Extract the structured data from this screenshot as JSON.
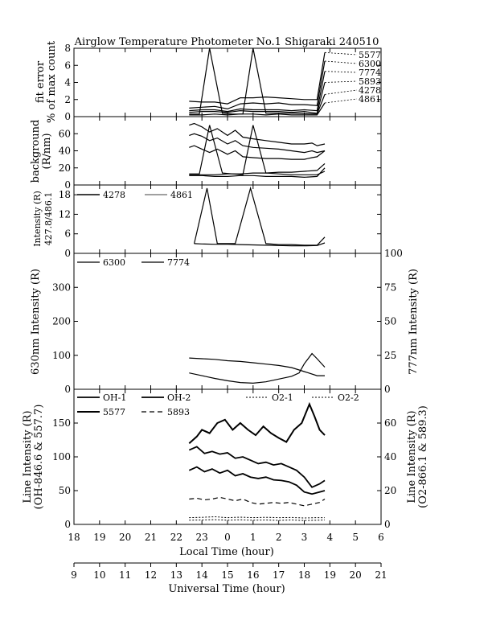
{
  "title": "Airglow Temperature Photometer No.1  Shigaraki  240510",
  "x_axes": {
    "local": {
      "label": "Local Time (hour)",
      "ticks": [
        "18",
        "19",
        "20",
        "21",
        "22",
        "23",
        "0",
        "1",
        "2",
        "3",
        "4",
        "5",
        "6"
      ]
    },
    "ut": {
      "label": "Universal Time (hour)",
      "ticks": [
        "9",
        "10",
        "11",
        "12",
        "13",
        "14",
        "15",
        "16",
        "17",
        "18",
        "19",
        "20",
        "21"
      ]
    }
  },
  "panels": [
    {
      "id": "fit",
      "ylabel_lines": [
        "fit error",
        "% of max count"
      ],
      "ylim": [
        0,
        8
      ],
      "yticks": [
        0,
        2,
        4,
        6,
        8
      ],
      "side_labels": [
        "5577",
        "6300",
        "7774",
        "5893",
        "4278",
        "4861"
      ]
    },
    {
      "id": "background",
      "ylabel_lines": [
        "background",
        "(R/nm)"
      ],
      "ylim": [
        0,
        80
      ],
      "yticks": [
        0,
        20,
        40,
        60
      ]
    },
    {
      "id": "blue",
      "ylabel_lines": [
        "Intensity (R)",
        "427.8/486.1"
      ],
      "ylim": [
        0,
        21
      ],
      "yticks": [
        0,
        6,
        12,
        18
      ],
      "legend": [
        "4278",
        "4861"
      ]
    },
    {
      "id": "red",
      "ylabel_left": "630nm Intensity (R)",
      "ylabel_right": "777nm Intensity (R)",
      "ylim": [
        0,
        400
      ],
      "yticks": [
        0,
        100,
        200,
        300
      ],
      "ylim_right": [
        0,
        100
      ],
      "yticks_right": [
        0,
        25,
        50,
        75,
        100
      ],
      "legend": [
        "6300",
        "7774"
      ]
    },
    {
      "id": "lines",
      "ylabel_left_lines": [
        "Line Intensity (R)",
        "(OH-846.6 & 557.7)"
      ],
      "ylabel_right_lines": [
        "Line Intensity (R)",
        "(O2-866.1 & 589.3)"
      ],
      "ylim": [
        0,
        200
      ],
      "yticks": [
        0,
        50,
        100,
        150
      ],
      "ylim_right": [
        0,
        80
      ],
      "yticks_right": [
        0,
        20,
        40,
        60
      ],
      "legend": [
        "OH-1",
        "OH-2",
        "O2-1",
        "O2-2",
        "5577",
        "5893"
      ]
    }
  ],
  "chart_data": [
    {
      "type": "line",
      "panel": "fit",
      "ylabel": "fit error % of max count",
      "x_unit": "local hour (24+ after midnight)",
      "ylim": [
        0,
        8
      ],
      "series": [
        {
          "name": "5577",
          "x": [
            22.5,
            23,
            23.5,
            24,
            24.5,
            25,
            25.5,
            26,
            26.5,
            27,
            27.5,
            27.8
          ],
          "y": [
            1.8,
            1.7,
            1.7,
            1.5,
            2.2,
            2.2,
            2.3,
            2.2,
            2.1,
            2.0,
            2.0,
            7.5
          ]
        },
        {
          "name": "6300",
          "x": [
            22.5,
            23,
            23.5,
            24,
            24.5,
            25,
            25.5,
            26,
            26.5,
            27,
            27.5,
            27.8
          ],
          "y": [
            1.0,
            1.1,
            1.2,
            0.9,
            1.5,
            1.6,
            1.5,
            1.6,
            1.4,
            1.4,
            1.3,
            6.5
          ]
        },
        {
          "name": "7774",
          "x": [
            22.5,
            23,
            23.5,
            24,
            24.5,
            25,
            25.5,
            26,
            26.5,
            27,
            27.5,
            27.8
          ],
          "y": [
            0.7,
            0.8,
            0.8,
            0.6,
            0.9,
            0.8,
            0.8,
            0.8,
            0.7,
            0.8,
            0.7,
            5.3
          ]
        },
        {
          "name": "5893",
          "x": [
            22.5,
            23,
            23.5,
            24,
            24.5,
            25,
            25.5,
            26,
            26.5,
            27,
            27.5,
            27.8
          ],
          "y": [
            0.5,
            0.6,
            0.6,
            0.5,
            0.7,
            0.6,
            0.6,
            0.6,
            0.5,
            0.6,
            0.4,
            4.0
          ]
        },
        {
          "name": "4278",
          "x": [
            22.5,
            22.9,
            23.3,
            23.8,
            24.2,
            24.6,
            25.0,
            25.5,
            26.5,
            27.5,
            27.8
          ],
          "y": [
            0.3,
            0.3,
            8.0,
            0.4,
            0.3,
            0.3,
            8.0,
            0.4,
            0.4,
            0.3,
            2.6
          ]
        },
        {
          "name": "4861",
          "x": [
            22.5,
            23,
            23.5,
            24,
            24.5,
            25,
            25.5,
            26,
            26.5,
            27,
            27.5,
            27.8
          ],
          "y": [
            0.2,
            0.2,
            0.3,
            0.2,
            0.3,
            0.3,
            0.2,
            0.3,
            0.2,
            0.2,
            0.2,
            1.6
          ]
        }
      ]
    },
    {
      "type": "line",
      "panel": "background",
      "ylabel": "background (R/nm)",
      "ylim": [
        0,
        80
      ],
      "series": [
        {
          "x": [
            22.5,
            22.7,
            23.0,
            23.3,
            23.6,
            24.0,
            24.3,
            24.6,
            25.0,
            25.5,
            26.0,
            26.5,
            27.0,
            27.3,
            27.5,
            27.8
          ],
          "y": [
            70,
            72,
            68,
            62,
            66,
            58,
            64,
            56,
            54,
            52,
            50,
            48,
            48,
            49,
            46,
            48
          ]
        },
        {
          "x": [
            22.5,
            22.7,
            23.0,
            23.3,
            23.6,
            24.0,
            24.3,
            24.6,
            25.0,
            25.5,
            26.0,
            26.5,
            27.0,
            27.3,
            27.5,
            27.8
          ],
          "y": [
            58,
            60,
            57,
            52,
            55,
            48,
            52,
            46,
            44,
            43,
            42,
            40,
            38,
            40,
            38,
            40
          ]
        },
        {
          "x": [
            22.5,
            22.7,
            23.0,
            23.3,
            23.6,
            24.0,
            24.3,
            24.6,
            25.0,
            25.5,
            26.0,
            26.5,
            27.0,
            27.3,
            27.5,
            27.8
          ],
          "y": [
            44,
            46,
            42,
            38,
            42,
            36,
            40,
            33,
            32,
            31,
            31,
            30,
            30,
            32,
            33,
            40
          ]
        },
        {
          "x": [
            22.5,
            22.9,
            23.3,
            23.8,
            24.2,
            24.6,
            25.0,
            25.5,
            26.0,
            26.5,
            27.0,
            27.5,
            27.8
          ],
          "y": [
            13,
            13,
            70,
            14,
            13,
            12,
            70,
            14,
            13,
            12,
            12,
            12,
            16
          ]
        },
        {
          "x": [
            22.5,
            23.0,
            23.5,
            24.0,
            24.5,
            25.0,
            25.5,
            26.0,
            26.5,
            27.0,
            27.5,
            27.8
          ],
          "y": [
            12,
            12,
            12,
            13,
            13,
            14,
            14,
            15,
            15,
            16,
            17,
            25
          ]
        },
        {
          "x": [
            22.5,
            23.0,
            23.5,
            24.0,
            24.5,
            25.0,
            25.5,
            26.0,
            26.5,
            27.0,
            27.5,
            27.8
          ],
          "y": [
            11,
            11,
            10,
            10,
            11,
            11,
            10,
            10,
            10,
            9,
            10,
            20
          ]
        }
      ]
    },
    {
      "type": "line",
      "panel": "blue",
      "ylabel": "Intensity (R) 427.8/486.1",
      "ylim": [
        0,
        21
      ],
      "series": [
        {
          "name": "4278",
          "x": [
            22.7,
            23.2,
            23.6,
            24.0,
            24.3,
            24.9,
            25.5,
            26.0,
            26.5,
            27.0,
            27.5,
            27.8
          ],
          "y": [
            3,
            20,
            3,
            3,
            3,
            20,
            3,
            2.7,
            2.7,
            2.5,
            2.5,
            5
          ]
        },
        {
          "name": "4861",
          "x": [
            22.7,
            23.0,
            23.5,
            24.0,
            24.5,
            25.0,
            25.5,
            26.0,
            26.5,
            27.0,
            27.5,
            27.8
          ],
          "y": [
            3,
            2.9,
            2.8,
            2.8,
            2.7,
            2.6,
            2.5,
            2.4,
            2.3,
            2.3,
            2.4,
            3.2
          ]
        }
      ]
    },
    {
      "type": "line",
      "panel": "red",
      "ylabel": "630nm Intensity (R) / 777nm Intensity (R)",
      "ylim": [
        0,
        400
      ],
      "series": [
        {
          "name": "6300",
          "axis": "left",
          "x": [
            22.5,
            23.0,
            23.5,
            24.0,
            24.5,
            25.0,
            25.5,
            26.0,
            26.5,
            26.8,
            27.0,
            27.3,
            27.5,
            27.8
          ],
          "y": [
            48,
            40,
            32,
            25,
            20,
            18,
            22,
            30,
            38,
            48,
            75,
            105,
            90,
            65
          ]
        },
        {
          "name": "7774",
          "axis": "right",
          "x": [
            22.5,
            23.0,
            23.5,
            24.0,
            24.5,
            25.0,
            25.5,
            26.0,
            26.5,
            27.0,
            27.5,
            27.8
          ],
          "y": [
            23,
            22.5,
            22,
            21,
            20.5,
            19.5,
            18.5,
            17.5,
            16,
            13,
            10,
            10
          ]
        }
      ]
    },
    {
      "type": "line",
      "panel": "lines",
      "ylabel": "Line Intensity (R)",
      "ylim": [
        0,
        200
      ],
      "series": [
        {
          "name": "5577",
          "axis": "left",
          "x": [
            22.5,
            22.8,
            23.0,
            23.3,
            23.6,
            23.9,
            24.2,
            24.5,
            24.8,
            25.1,
            25.4,
            25.7,
            26.0,
            26.3,
            26.6,
            26.9,
            27.2,
            27.4,
            27.6,
            27.8
          ],
          "y": [
            120,
            130,
            140,
            135,
            150,
            155,
            140,
            150,
            140,
            132,
            145,
            135,
            128,
            122,
            140,
            150,
            178,
            160,
            140,
            132
          ]
        },
        {
          "name": "OH-1",
          "axis": "left",
          "x": [
            22.5,
            22.8,
            23.1,
            23.4,
            23.7,
            24.0,
            24.3,
            24.6,
            24.9,
            25.2,
            25.5,
            25.8,
            26.1,
            26.4,
            26.7,
            27.0,
            27.3,
            27.6,
            27.8
          ],
          "y": [
            110,
            115,
            105,
            108,
            104,
            106,
            98,
            100,
            95,
            90,
            92,
            88,
            90,
            85,
            80,
            70,
            55,
            60,
            65
          ]
        },
        {
          "name": "OH-2",
          "axis": "left",
          "x": [
            22.5,
            22.8,
            23.1,
            23.4,
            23.7,
            24.0,
            24.3,
            24.6,
            24.9,
            25.2,
            25.5,
            25.8,
            26.1,
            26.4,
            26.7,
            27.0,
            27.3,
            27.6,
            27.8
          ],
          "y": [
            80,
            85,
            78,
            82,
            76,
            80,
            72,
            75,
            70,
            68,
            70,
            66,
            65,
            63,
            58,
            48,
            45,
            48,
            50
          ]
        },
        {
          "name": "5893",
          "axis": "right",
          "x": [
            22.5,
            22.8,
            23.1,
            23.4,
            23.7,
            24.0,
            24.3,
            24.6,
            24.9,
            25.2,
            25.5,
            25.8,
            26.1,
            26.4,
            26.7,
            27.0,
            27.3,
            27.6,
            27.8
          ],
          "y": [
            15,
            15.5,
            14.5,
            15,
            16,
            15,
            14,
            15,
            13,
            12,
            12.5,
            13,
            12.5,
            13,
            12,
            11,
            12,
            13,
            15
          ]
        },
        {
          "name": "O2-1",
          "axis": "right",
          "x": [
            22.5,
            23.0,
            23.5,
            24.0,
            24.5,
            25.0,
            25.5,
            26.0,
            26.5,
            27.0,
            27.5,
            27.8
          ],
          "y": [
            4,
            4.2,
            4.5,
            4,
            4.3,
            4,
            4.2,
            4,
            4.1,
            3.8,
            4,
            4
          ]
        },
        {
          "name": "O2-2",
          "axis": "right",
          "x": [
            22.5,
            23.0,
            23.5,
            24.0,
            24.5,
            25.0,
            25.5,
            26.0,
            26.5,
            27.0,
            27.5,
            27.8
          ],
          "y": [
            2.5,
            2.6,
            2.8,
            2.5,
            2.7,
            2.5,
            2.6,
            2.4,
            2.6,
            2.3,
            2.5,
            2.6
          ]
        }
      ]
    }
  ]
}
